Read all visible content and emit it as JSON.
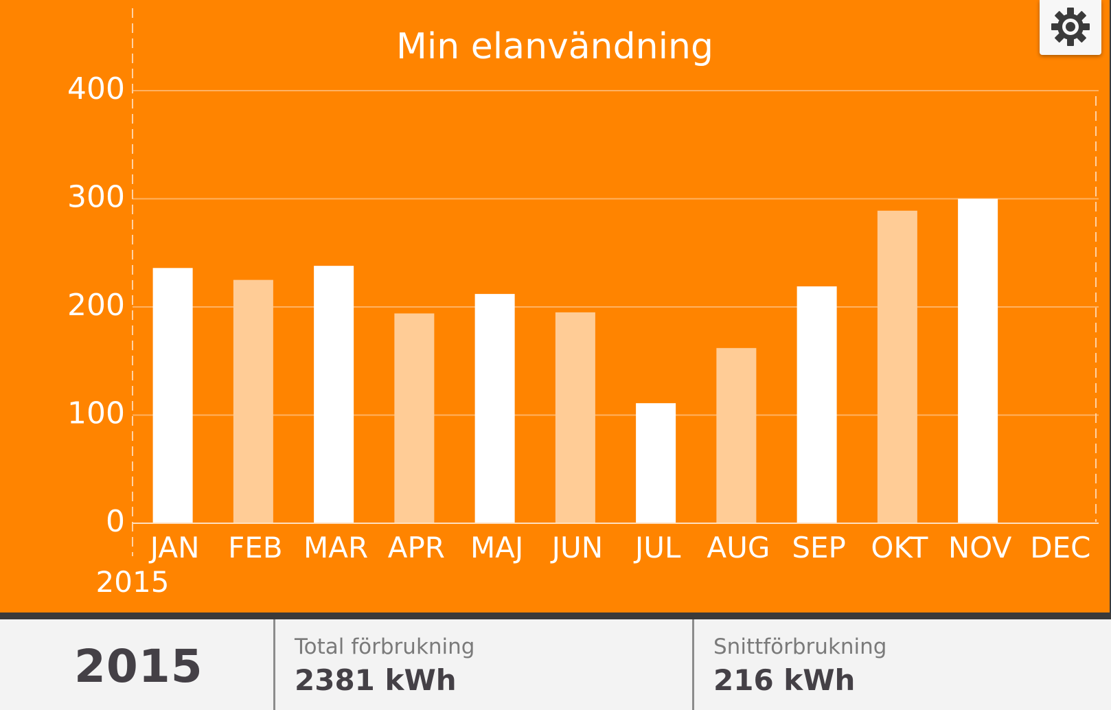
{
  "chart": {
    "title": "Min elanvändning",
    "year_label": "2015"
  },
  "colors": {
    "panel_bg": "#ff8400",
    "bar_primary": "#ffffff",
    "bar_secondary": "#ffcc96",
    "gridline": "#ffb262"
  },
  "settings": {
    "icon": "gear-icon"
  },
  "chart_data": {
    "type": "bar",
    "title": "Min elanvändning",
    "xlabel": "",
    "ylabel": "",
    "ylim": [
      0,
      400
    ],
    "yticks": [
      0,
      100,
      200,
      300,
      400
    ],
    "grid": true,
    "categories": [
      "JAN",
      "FEB",
      "MAR",
      "APR",
      "MAJ",
      "JUN",
      "JUL",
      "AUG",
      "SEP",
      "OKT",
      "NOV",
      "DEC"
    ],
    "values": [
      236,
      225,
      238,
      194,
      212,
      195,
      111,
      162,
      219,
      289,
      300,
      null
    ],
    "bar_colors": [
      "#ffffff",
      "#ffcc96",
      "#ffffff",
      "#ffcc96",
      "#ffffff",
      "#ffcc96",
      "#ffffff",
      "#ffcc96",
      "#ffffff",
      "#ffcc96",
      "#ffffff",
      "#ffcc96"
    ]
  },
  "footer": {
    "year": "2015",
    "total_label": "Total förbrukning",
    "total_value": "2381 kWh",
    "avg_label": "Snittförbrukning",
    "avg_value": "216 kWh"
  }
}
